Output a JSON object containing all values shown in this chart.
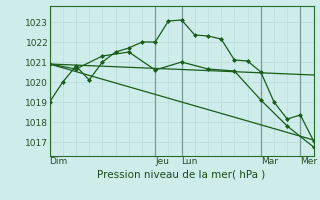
{
  "bg_color": "#ceecea",
  "grid_color_minor": "#bcdedd",
  "grid_color_major": "#aacfcd",
  "line_color": "#1a5c1a",
  "xlabel": "Pression niveau de la mer( hPa )",
  "xlabel_fontsize": 7.5,
  "tick_fontsize": 6.5,
  "yticks": [
    1017,
    1018,
    1019,
    1020,
    1021,
    1022,
    1023
  ],
  "ylim": [
    1016.3,
    1023.8
  ],
  "xlim": [
    0,
    120
  ],
  "xtick_positions": [
    0,
    48,
    60,
    96,
    114
  ],
  "xtick_labels": [
    "Dim",
    "Jeu",
    "Lun",
    "Mar",
    "Mer"
  ],
  "vlines": [
    0,
    48,
    60,
    96,
    114
  ],
  "series1_x": [
    0,
    6,
    12,
    18,
    24,
    30,
    36,
    42,
    48,
    54,
    60,
    66,
    72,
    78,
    84,
    90,
    96,
    102,
    108,
    114,
    120
  ],
  "series1_y": [
    1019.0,
    1020.0,
    1020.8,
    1020.1,
    1021.0,
    1021.5,
    1021.7,
    1022.0,
    1022.0,
    1023.05,
    1023.1,
    1022.35,
    1022.3,
    1022.15,
    1021.1,
    1021.05,
    1020.5,
    1019.0,
    1018.15,
    1018.35,
    1017.05
  ],
  "series2_x": [
    0,
    12,
    24,
    36,
    48,
    60,
    72,
    84,
    96,
    108,
    120
  ],
  "series2_y": [
    1020.9,
    1020.65,
    1021.3,
    1021.5,
    1020.6,
    1021.0,
    1020.65,
    1020.55,
    1019.1,
    1017.8,
    1016.75
  ],
  "series3_x": [
    0,
    120
  ],
  "series3_y": [
    1020.9,
    1020.35
  ],
  "series4_x": [
    0,
    120
  ],
  "series4_y": [
    1020.9,
    1017.1
  ]
}
